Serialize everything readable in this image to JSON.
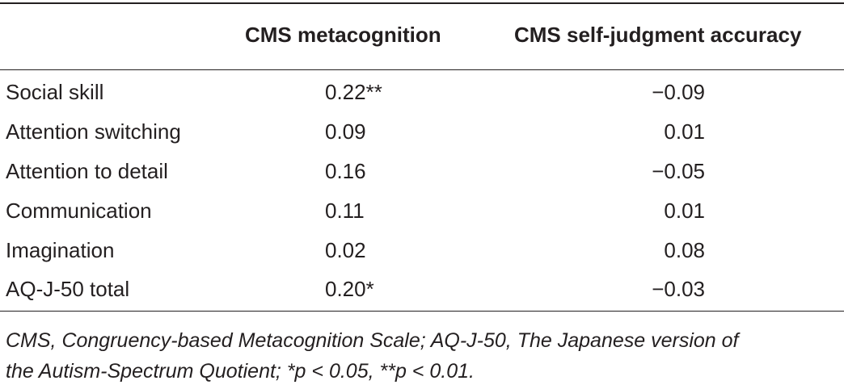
{
  "table": {
    "headers": [
      "",
      "CMS metacognition",
      "CMS self-judgment accuracy"
    ],
    "rows": [
      {
        "label": "Social skill",
        "metacognition": "0.22**",
        "accuracy": "−0.09"
      },
      {
        "label": "Attention switching",
        "metacognition": "0.09",
        "accuracy": "0.01"
      },
      {
        "label": "Attention to detail",
        "metacognition": "0.16",
        "accuracy": "−0.05"
      },
      {
        "label": "Communication",
        "metacognition": "0.11",
        "accuracy": "0.01"
      },
      {
        "label": "Imagination",
        "metacognition": "0.02",
        "accuracy": "0.08"
      },
      {
        "label": "AQ-J-50 total",
        "metacognition": "0.20*",
        "accuracy": "−0.03"
      }
    ]
  },
  "footnote": {
    "line1": "CMS, Congruency-based Metacognition Scale; AQ-J-50, The Japanese version of",
    "line2": "the Autism-Spectrum Quotient; *p < 0.05, **p < 0.01."
  }
}
